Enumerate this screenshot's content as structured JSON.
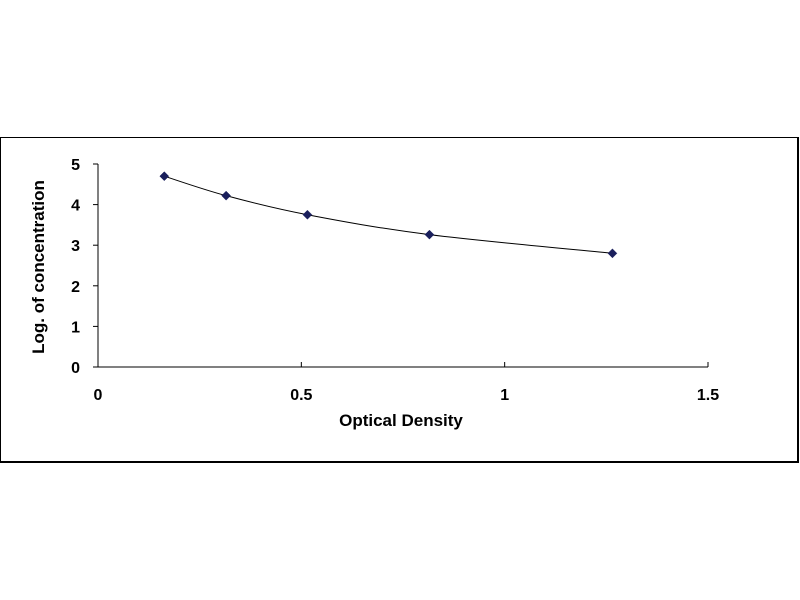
{
  "chart_data": {
    "type": "scatter",
    "title": "",
    "xlabel": "Optical Density",
    "ylabel": "Log. of concentration",
    "xlim": [
      0,
      1.5
    ],
    "ylim": [
      0,
      5
    ],
    "x_ticks": [
      "0",
      "0.5",
      "1",
      "1.5"
    ],
    "y_ticks": [
      "0",
      "1",
      "2",
      "3",
      "4",
      "5"
    ],
    "grid": false,
    "legend": "none",
    "series": [
      {
        "x": [
          0.163,
          0.315,
          0.515,
          0.815,
          1.265
        ],
        "y": [
          4.7,
          4.22,
          3.75,
          3.26,
          2.8
        ],
        "marker": "diamond",
        "marker_color": "#1a1f5c",
        "line": "smooth trend curve",
        "line_color": "#000000"
      }
    ]
  }
}
